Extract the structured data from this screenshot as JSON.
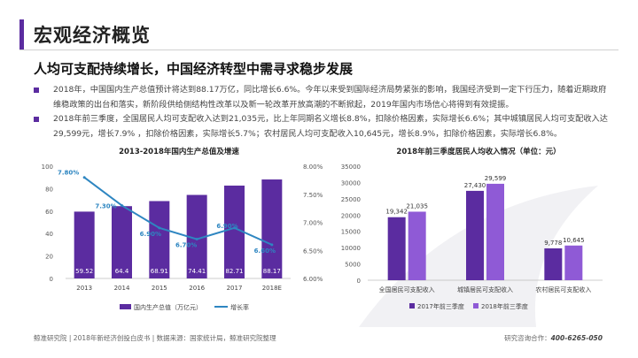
{
  "header": {
    "title": "宏观经济概览"
  },
  "subtitle": "人均可支配持续增长，中国经济转型中需寻求稳步发展",
  "bullets": [
    "2018年，中国国内生产总值预计将达到88.17万亿，同比增长6.6%。今年以来受到国际经济局势紧张的影响，我国经济受到一定下行压力，随着近期政府维稳政策的出台和落实，新阶段供给侧结构性改革以及新一轮改革开放高潮的不断掀起，2019年国内市场信心将得到有效提振。",
    "2018年前三季度，全国居民人均可支配收入达到21,035元，比上年同期名义增长8.8%，扣除价格因素，实际增长6.6%；其中城镇居民人均可支配收入达29,599元，增长7.9% ，扣除价格因素，实际增长5.7%；农村居民人均可支配收入10,645元，增长8.9%，扣除价格因素，实际增长6.8%。"
  ],
  "chart_data": [
    {
      "type": "bar",
      "title": "2013-2018年国内生产总值及增速",
      "categories": [
        "2013",
        "2014",
        "2015",
        "2016",
        "2017",
        "2018E"
      ],
      "series": [
        {
          "name": "国内生产总值（万亿元）",
          "type": "bar",
          "axis": "left",
          "values": [
            59.52,
            64.4,
            68.91,
            74.41,
            82.71,
            88.17
          ]
        },
        {
          "name": "增长率",
          "type": "line",
          "axis": "right",
          "values": [
            7.8,
            7.3,
            6.9,
            6.7,
            6.9,
            6.6
          ],
          "labels": [
            "7.80%",
            "7.30%",
            "6.90%",
            "6.70%",
            "6.90%",
            "6.60%"
          ]
        }
      ],
      "ylim": [
        0,
        100
      ],
      "yticks": [
        "0",
        "20",
        "40",
        "60",
        "80",
        "100"
      ],
      "y2lim": [
        6.0,
        8.0
      ],
      "y2ticks": [
        "6.00%",
        "6.50%",
        "7.00%",
        "7.50%",
        "8.00%"
      ],
      "legend": [
        "国内生产总值（万亿元）",
        "增长率"
      ],
      "colors": {
        "bar": "#5b2ca0",
        "line": "#2e86c1",
        "line_label": "#2e86c1"
      }
    },
    {
      "type": "bar",
      "title": "2018年前三季度居民人均收入情况（单位：元）",
      "categories": [
        "全国居民可支配收入",
        "城镇居民可支配收入",
        "农村居民可支配收入"
      ],
      "series": [
        {
          "name": "2017年前三季度",
          "values": [
            19342,
            27430,
            9778
          ],
          "labels": [
            "19,342",
            "27,430",
            "9,778"
          ]
        },
        {
          "name": "2018年前三季度",
          "values": [
            21035,
            29599,
            10645
          ],
          "labels": [
            "21,035",
            "29,599",
            "10,645"
          ]
        }
      ],
      "ylim": [
        0,
        35000
      ],
      "yticks": [
        "0",
        "5000",
        "10000",
        "15000",
        "20000",
        "25000",
        "30000",
        "35000"
      ],
      "legend": [
        "2017年前三季度",
        "2018年前三季度"
      ],
      "colors": {
        "s1": "#5b2ca0",
        "s2": "#8f5ad6"
      }
    }
  ],
  "footer": {
    "left": "鲸准研究院 | 2018年新经济创投白皮书 | 数据来源：国家统计局，鲸准研究院整理",
    "right_label": "研究咨询合作：",
    "right_phone": "400-6265-050"
  }
}
